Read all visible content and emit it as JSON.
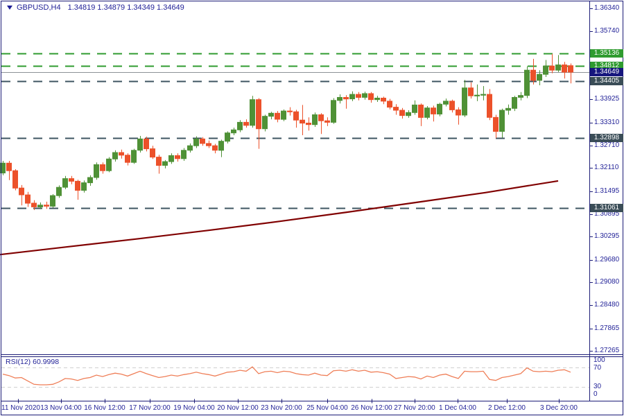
{
  "title": {
    "symbol": "GBPUSD,H4",
    "ohlc": "1.34819 1.34879 1.34349 1.34649"
  },
  "colors": {
    "bull": "#4f9136",
    "bear": "#ec512a",
    "frame": "#1c1c77",
    "text": "#1f1f96",
    "sr_dark": "#3d5460",
    "sr_green": "#2f9b2f",
    "current_line": "#8c9196",
    "badge_navy": "#16167e",
    "badge_dark": "#3a4d57",
    "badge_green": "#2f9b2f",
    "ma": "#800000",
    "rsi_line": "#ef7e57",
    "rsi_dash": "#cfcfcf",
    "background": "#ffffff"
  },
  "chart_data": {
    "type": "candlestick",
    "symbol": "GBPUSD",
    "timeframe": "H4",
    "title": "GBPUSD,H4",
    "last_bar": {
      "open": 1.34819,
      "high": 1.34879,
      "low": 1.34349,
      "close": 1.34649
    },
    "candles": [
      [
        1.3198,
        1.323,
        1.3192,
        1.3224
      ],
      [
        1.3224,
        1.323,
        1.3179,
        1.3204
      ],
      [
        1.3204,
        1.3208,
        1.3152,
        1.3158
      ],
      [
        1.3158,
        1.3166,
        1.3112,
        1.314
      ],
      [
        1.314,
        1.3148,
        1.3108,
        1.3118
      ],
      [
        1.3118,
        1.3126,
        1.31,
        1.3108
      ],
      [
        1.3108,
        1.312,
        1.3102,
        1.3113
      ],
      [
        1.3113,
        1.3122,
        1.3103,
        1.311
      ],
      [
        1.311,
        1.3142,
        1.3106,
        1.3138
      ],
      [
        1.3138,
        1.3165,
        1.3132,
        1.316
      ],
      [
        1.316,
        1.319,
        1.3155,
        1.3183
      ],
      [
        1.3183,
        1.319,
        1.3168,
        1.3176
      ],
      [
        1.3176,
        1.318,
        1.3127,
        1.3152
      ],
      [
        1.3152,
        1.3178,
        1.3146,
        1.3172
      ],
      [
        1.3172,
        1.3192,
        1.3164,
        1.3186
      ],
      [
        1.3186,
        1.3226,
        1.318,
        1.322
      ],
      [
        1.322,
        1.3226,
        1.3196,
        1.3204
      ],
      [
        1.3204,
        1.324,
        1.32,
        1.3235
      ],
      [
        1.3235,
        1.3258,
        1.3228,
        1.3252
      ],
      [
        1.3252,
        1.326,
        1.3236,
        1.3245
      ],
      [
        1.3245,
        1.325,
        1.3218,
        1.3226
      ],
      [
        1.3226,
        1.3262,
        1.3222,
        1.3258
      ],
      [
        1.3258,
        1.3296,
        1.3252,
        1.3288
      ],
      [
        1.3288,
        1.3294,
        1.3255,
        1.3262
      ],
      [
        1.3262,
        1.327,
        1.3235,
        1.324
      ],
      [
        1.324,
        1.3246,
        1.3196,
        1.3218
      ],
      [
        1.3218,
        1.3232,
        1.321,
        1.3228
      ],
      [
        1.3228,
        1.325,
        1.3222,
        1.3244
      ],
      [
        1.3244,
        1.325,
        1.3228,
        1.3236
      ],
      [
        1.3236,
        1.3264,
        1.323,
        1.3258
      ],
      [
        1.3258,
        1.3276,
        1.3252,
        1.327
      ],
      [
        1.327,
        1.3295,
        1.3264,
        1.3288
      ],
      [
        1.3288,
        1.3293,
        1.327,
        1.3276
      ],
      [
        1.3276,
        1.3284,
        1.3264,
        1.327
      ],
      [
        1.327,
        1.3275,
        1.325,
        1.3258
      ],
      [
        1.3258,
        1.3286,
        1.324,
        1.3282
      ],
      [
        1.3282,
        1.3308,
        1.3276,
        1.3304
      ],
      [
        1.3304,
        1.3318,
        1.3298,
        1.3312
      ],
      [
        1.3312,
        1.3338,
        1.3306,
        1.3332
      ],
      [
        1.3332,
        1.334,
        1.3318,
        1.3324
      ],
      [
        1.3324,
        1.3402,
        1.3318,
        1.3392
      ],
      [
        1.3392,
        1.3396,
        1.3262,
        1.3315
      ],
      [
        1.3315,
        1.3352,
        1.3308,
        1.3348
      ],
      [
        1.3348,
        1.336,
        1.334,
        1.3356
      ],
      [
        1.3356,
        1.3362,
        1.3332,
        1.334
      ],
      [
        1.334,
        1.3366,
        1.3335,
        1.3362
      ],
      [
        1.3362,
        1.3372,
        1.335,
        1.336
      ],
      [
        1.336,
        1.3365,
        1.3318,
        1.3338
      ],
      [
        1.3338,
        1.3378,
        1.3298,
        1.333
      ],
      [
        1.333,
        1.3345,
        1.331,
        1.3326
      ],
      [
        1.3326,
        1.3358,
        1.332,
        1.3352
      ],
      [
        1.3352,
        1.3356,
        1.3301,
        1.3336
      ],
      [
        1.3336,
        1.3345,
        1.3322,
        1.3332
      ],
      [
        1.3332,
        1.3396,
        1.3328,
        1.339
      ],
      [
        1.339,
        1.3406,
        1.3382,
        1.3398
      ],
      [
        1.3398,
        1.3404,
        1.3368,
        1.3394
      ],
      [
        1.3394,
        1.3414,
        1.3388,
        1.3406
      ],
      [
        1.3406,
        1.3412,
        1.339,
        1.3398
      ],
      [
        1.3398,
        1.3413,
        1.3392,
        1.3408
      ],
      [
        1.3408,
        1.3412,
        1.3384,
        1.3392
      ],
      [
        1.3392,
        1.3402,
        1.3386,
        1.3396
      ],
      [
        1.3396,
        1.34,
        1.338,
        1.3388
      ],
      [
        1.3388,
        1.3394,
        1.3366,
        1.3372
      ],
      [
        1.3372,
        1.338,
        1.3352,
        1.3364
      ],
      [
        1.3364,
        1.337,
        1.3342,
        1.335
      ],
      [
        1.335,
        1.3364,
        1.3344,
        1.3358
      ],
      [
        1.3358,
        1.339,
        1.3352,
        1.3378
      ],
      [
        1.3378,
        1.3382,
        1.3322,
        1.3345
      ],
      [
        1.3345,
        1.3375,
        1.334,
        1.337
      ],
      [
        1.337,
        1.3376,
        1.3334,
        1.3354
      ],
      [
        1.3354,
        1.3384,
        1.3348,
        1.338
      ],
      [
        1.338,
        1.3395,
        1.3374,
        1.3388
      ],
      [
        1.3388,
        1.3392,
        1.3358,
        1.3365
      ],
      [
        1.3365,
        1.3372,
        1.3326,
        1.3351
      ],
      [
        1.3351,
        1.3444,
        1.3346,
        1.3423
      ],
      [
        1.3423,
        1.3438,
        1.3395,
        1.3402
      ],
      [
        1.3402,
        1.3432,
        1.3388,
        1.3404
      ],
      [
        1.3404,
        1.3428,
        1.339,
        1.3406
      ],
      [
        1.3406,
        1.342,
        1.3338,
        1.3345
      ],
      [
        1.3345,
        1.3352,
        1.329,
        1.3308
      ],
      [
        1.3308,
        1.3368,
        1.3291,
        1.3364
      ],
      [
        1.3364,
        1.3379,
        1.3352,
        1.3369
      ],
      [
        1.3369,
        1.3402,
        1.3362,
        1.3398
      ],
      [
        1.3398,
        1.3412,
        1.339,
        1.3403
      ],
      [
        1.3403,
        1.348,
        1.3396,
        1.347
      ],
      [
        1.347,
        1.35,
        1.3432,
        1.3443
      ],
      [
        1.3443,
        1.347,
        1.343,
        1.3459
      ],
      [
        1.3459,
        1.3497,
        1.3452,
        1.3481
      ],
      [
        1.3481,
        1.3513,
        1.3462,
        1.347
      ],
      [
        1.347,
        1.351,
        1.3465,
        1.3484
      ],
      [
        1.3484,
        1.3492,
        1.3448,
        1.3465
      ],
      [
        1.34819,
        1.34879,
        1.34349,
        1.34649
      ]
    ],
    "overlays": {
      "trend_ma": {
        "points_x_price": [
          [
            0,
            1.2982
          ],
          [
            100,
            1.3003
          ],
          [
            200,
            1.3024
          ],
          [
            300,
            1.3046
          ],
          [
            400,
            1.3069
          ],
          [
            500,
            1.3094
          ],
          [
            600,
            1.312
          ],
          [
            700,
            1.3146
          ],
          [
            805,
            1.3177
          ]
        ]
      }
    },
    "horizontal_lines": [
      {
        "price": 1.35136,
        "style": "dashed",
        "role": "resistance",
        "color_key": "sr_green",
        "badge_key": "badge_green",
        "label": "1.35136"
      },
      {
        "price": 1.34812,
        "style": "dashed",
        "role": "resistance",
        "color_key": "sr_green",
        "badge_key": "badge_green",
        "label": "1.34812"
      },
      {
        "price": 1.34649,
        "style": "solid",
        "role": "current-price",
        "color_key": "current_line",
        "badge_key": "badge_navy",
        "label": "1.34649"
      },
      {
        "price": 1.34405,
        "style": "dashed",
        "role": "support",
        "color_key": "sr_dark",
        "badge_key": "badge_dark",
        "label": "1.34405"
      },
      {
        "price": 1.32898,
        "style": "dashed",
        "role": "support",
        "color_key": "sr_dark",
        "badge_key": "badge_dark",
        "label": "1.32898"
      },
      {
        "price": 1.31061,
        "style": "dashed",
        "role": "support",
        "color_key": "sr_dark",
        "badge_key": "badge_dark",
        "label": "1.31061"
      }
    ],
    "indicator": {
      "name": "RSI",
      "period": 12,
      "label": "RSI(12)",
      "current": "60.9998",
      "range": [
        0,
        100
      ],
      "levels": {
        "overbought": 70,
        "oversold": 30
      },
      "values": [
        57,
        54,
        49,
        50,
        43,
        36,
        35,
        35,
        36,
        41,
        48,
        47,
        44,
        48,
        50,
        55,
        52,
        56,
        59,
        57,
        53,
        58,
        63,
        58,
        54,
        50,
        52,
        55,
        53,
        56,
        58,
        61,
        58,
        56,
        53,
        57,
        61,
        62,
        65,
        63,
        72,
        58,
        62,
        63,
        60,
        63,
        62,
        58,
        56,
        55,
        59,
        55,
        54,
        64,
        65,
        63,
        66,
        63,
        65,
        61,
        62,
        60,
        57,
        48,
        50,
        52,
        51,
        47,
        53,
        50,
        55,
        57,
        52,
        48,
        63,
        62,
        62,
        63,
        46,
        44,
        50,
        52,
        55,
        58,
        70,
        63,
        62,
        63,
        62,
        65,
        66,
        61
      ]
    }
  },
  "price_axis": {
    "ticks": [
      "1.36340",
      "1.35740",
      "1.33925",
      "1.33310",
      "1.32710",
      "1.32110",
      "1.31495",
      "1.30895",
      "1.30295",
      "1.29680",
      "1.29080",
      "1.28480",
      "1.27865",
      "1.27265"
    ]
  },
  "time_axis": {
    "labels": [
      "11 Nov 2020",
      "13 Nov 04:00",
      "16 Nov 12:00",
      "17 Nov 20:00",
      "19 Nov 04:00",
      "20 Nov 12:00",
      "23 Nov 20:00",
      "25 Nov 04:00",
      "26 Nov 12:00",
      "27 Nov 20:00",
      "1 Dec 04:00",
      "2 Dec 12:00",
      "3 Dec 20:00"
    ]
  },
  "rsi_panel": {
    "label": "RSI(12)",
    "value": "60.9998",
    "scale": [
      "100",
      "70",
      "30",
      "0"
    ]
  }
}
